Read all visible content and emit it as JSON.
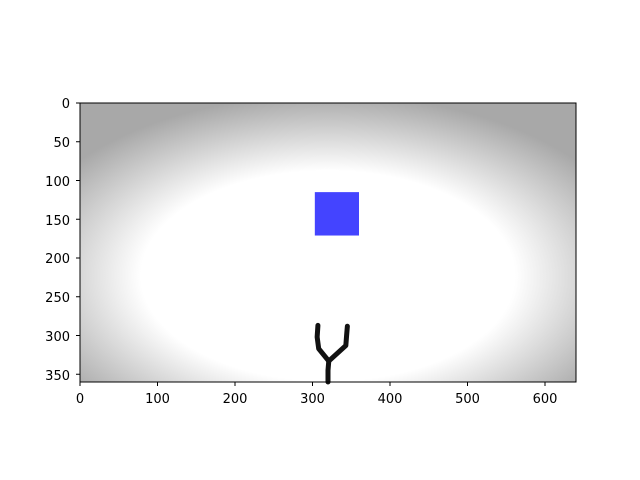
{
  "figure": {
    "x_ticks": [
      "0",
      "100",
      "200",
      "300",
      "400",
      "500",
      "600"
    ],
    "y_ticks": [
      "0",
      "50",
      "100",
      "150",
      "200",
      "250",
      "300",
      "350"
    ]
  },
  "scene": {
    "x_range": [
      0,
      640
    ],
    "y_range": [
      0,
      360
    ],
    "background": {
      "center_color": "#ffffff",
      "edge_color": "#a8a8a8"
    },
    "target_square": {
      "color": "#4444ff",
      "x_min": 303,
      "x_max": 360,
      "y_min": 115,
      "y_max": 171
    },
    "gripper": {
      "color": "#111111",
      "stem": [
        [
          320,
          360
        ],
        [
          320,
          345
        ],
        [
          321,
          333
        ]
      ],
      "left_arm": [
        [
          321,
          333
        ],
        [
          308,
          317
        ],
        [
          306,
          302
        ],
        [
          307,
          287
        ]
      ],
      "right_arm": [
        [
          321,
          333
        ],
        [
          343,
          313
        ],
        [
          344,
          300
        ],
        [
          345,
          288
        ]
      ]
    }
  }
}
